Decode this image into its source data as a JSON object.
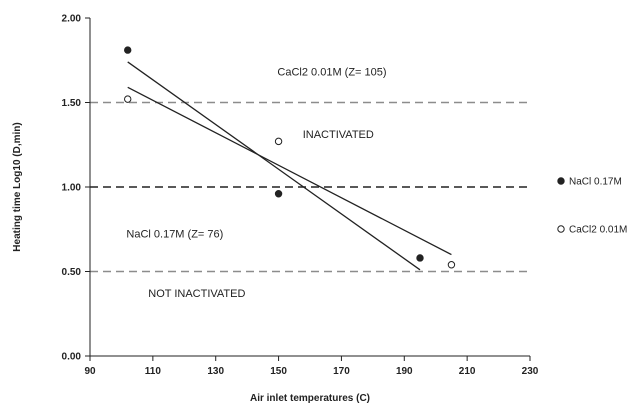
{
  "chart_data": {
    "type": "scatter",
    "xlabel": "Air inlet temperatures (C)",
    "ylabel": "Heating time Log10 (D,min)",
    "xlim": [
      90,
      230
    ],
    "ylim": [
      0,
      2
    ],
    "xticks": [
      90,
      110,
      130,
      150,
      170,
      190,
      210,
      230
    ],
    "yticks": [
      0,
      0.5,
      1,
      1.5,
      2
    ],
    "ytick_labels": [
      "0.00",
      "0.50",
      "1.00",
      "1.50",
      "2.00"
    ],
    "grid": false,
    "legend_position": "right",
    "series": [
      {
        "name": "NaCl 0.17M",
        "marker": "filled-circle",
        "color": "#222222",
        "points": [
          {
            "x": 102,
            "y": 1.81
          },
          {
            "x": 150,
            "y": 0.96
          },
          {
            "x": 195,
            "y": 0.58
          }
        ],
        "fit_line": {
          "x": [
            102,
            195
          ],
          "y": [
            1.74,
            0.51
          ]
        }
      },
      {
        "name": "CaCl2 0.01M",
        "marker": "open-circle",
        "color": "#222222",
        "points": [
          {
            "x": 102,
            "y": 1.52
          },
          {
            "x": 150,
            "y": 1.27
          },
          {
            "x": 205,
            "y": 0.54
          }
        ],
        "fit_line": {
          "x": [
            102,
            205
          ],
          "y": [
            1.59,
            0.6
          ]
        }
      }
    ],
    "reference_lines": [
      {
        "y": 1.5,
        "style": "dashed",
        "color": "#8c8c8c"
      },
      {
        "y": 1.0,
        "style": "dashed",
        "color": "#222222"
      },
      {
        "y": 0.5,
        "style": "dashed",
        "color": "#8c8c8c"
      }
    ],
    "annotations": [
      {
        "text": "CaCl2 0.01M (Z= 105)",
        "x": 167,
        "y": 1.66
      },
      {
        "text": "INACTIVATED",
        "x": 169,
        "y": 1.29
      },
      {
        "text": "NaCl 0.17M (Z= 76)",
        "x": 117,
        "y": 0.7
      },
      {
        "text": "NOT INACTIVATED",
        "x": 124,
        "y": 0.35
      }
    ],
    "legend": [
      {
        "label": "NaCl 0.17M",
        "marker": "filled-circle"
      },
      {
        "label": "CaCl2 0.01M",
        "marker": "open-circle"
      }
    ]
  }
}
